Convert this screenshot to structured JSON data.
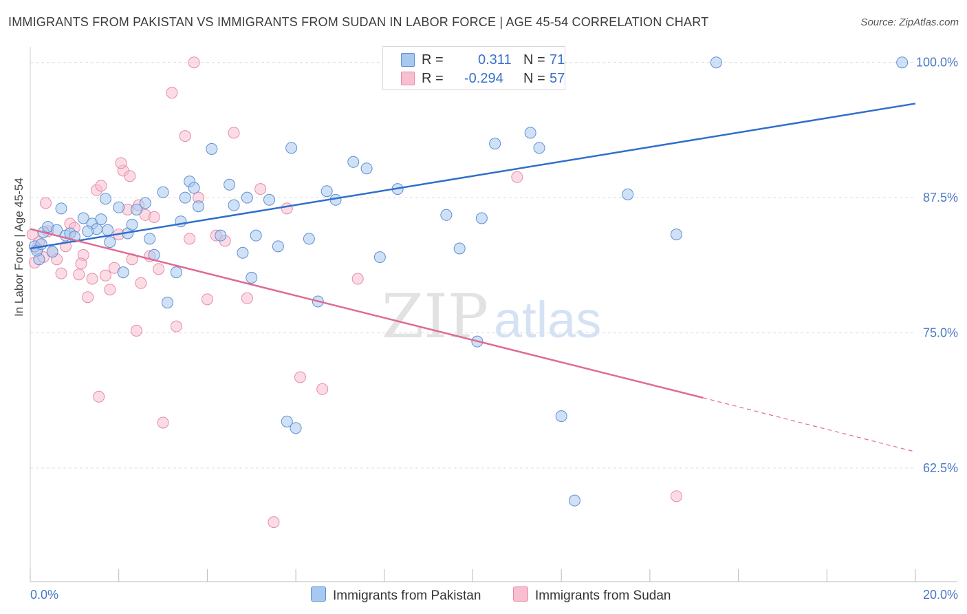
{
  "title": "IMMIGRANTS FROM PAKISTAN VS IMMIGRANTS FROM SUDAN IN LABOR FORCE | AGE 45-54 CORRELATION CHART",
  "source": "Source: ZipAtlas.com",
  "watermark": {
    "zip": "ZIP",
    "atlas": "atlas"
  },
  "legend": {
    "r_label": "R =",
    "n_label": "N =",
    "pakistan": {
      "r": "0.311",
      "n": "71"
    },
    "sudan": {
      "r": "-0.294",
      "n": "57"
    }
  },
  "colors": {
    "pakistan_fill": "#a9c8ef",
    "pakistan_stroke": "#5b8fd6",
    "pakistan_line": "#2f6fcc",
    "sudan_fill": "#f7bfd0",
    "sudan_stroke": "#e88aa6",
    "sudan_line": "#e06a93",
    "tick_label": "#4a78c4",
    "grid": "#dcdcdc"
  },
  "chart_data": {
    "type": "scatter",
    "title": "IMMIGRANTS FROM PAKISTAN VS IMMIGRANTS FROM SUDAN IN LABOR FORCE | AGE 45-54 CORRELATION CHART",
    "xlabel": "",
    "ylabel": "In Labor Force | Age 45-54",
    "xlim": [
      0,
      20
    ],
    "ylim": [
      52,
      101
    ],
    "x_ticks": [
      "0.0%",
      "20.0%"
    ],
    "y_ticks": [
      {
        "value": 100,
        "label": "100.0%"
      },
      {
        "value": 87.5,
        "label": "87.5%"
      },
      {
        "value": 75,
        "label": "75.0%"
      },
      {
        "value": 62.5,
        "label": "62.5%"
      }
    ],
    "grid": true,
    "legend_position": "top-center",
    "series": [
      {
        "name": "Immigrants from Pakistan",
        "trend": {
          "x": [
            0,
            20
          ],
          "y": [
            82.8,
            96.2
          ]
        },
        "points": [
          [
            0.1,
            83.0
          ],
          [
            0.2,
            81.8
          ],
          [
            0.3,
            84.3
          ],
          [
            0.4,
            84.8
          ],
          [
            0.5,
            82.5
          ],
          [
            0.6,
            84.5
          ],
          [
            0.7,
            86.5
          ],
          [
            0.8,
            84.0
          ],
          [
            0.9,
            84.2
          ],
          [
            1.0,
            83.9
          ],
          [
            1.2,
            85.6
          ],
          [
            1.4,
            85.1
          ],
          [
            1.5,
            84.6
          ],
          [
            1.6,
            85.5
          ],
          [
            1.7,
            87.4
          ],
          [
            1.75,
            84.5
          ],
          [
            1.8,
            83.4
          ],
          [
            2.0,
            86.6
          ],
          [
            2.1,
            80.6
          ],
          [
            2.2,
            84.2
          ],
          [
            2.3,
            85.0
          ],
          [
            2.4,
            86.4
          ],
          [
            2.6,
            87.0
          ],
          [
            2.7,
            83.7
          ],
          [
            2.8,
            82.2
          ],
          [
            3.0,
            88.0
          ],
          [
            3.1,
            77.8
          ],
          [
            3.3,
            80.6
          ],
          [
            3.4,
            85.3
          ],
          [
            3.5,
            87.5
          ],
          [
            3.6,
            89.0
          ],
          [
            3.7,
            88.4
          ],
          [
            3.8,
            86.7
          ],
          [
            4.1,
            92.0
          ],
          [
            4.3,
            84.0
          ],
          [
            4.5,
            88.7
          ],
          [
            4.6,
            86.8
          ],
          [
            4.8,
            82.4
          ],
          [
            4.9,
            87.5
          ],
          [
            5.0,
            80.1
          ],
          [
            5.1,
            84.0
          ],
          [
            5.4,
            87.3
          ],
          [
            5.6,
            83.0
          ],
          [
            5.9,
            92.1
          ],
          [
            6.3,
            83.7
          ],
          [
            6.5,
            77.9
          ],
          [
            6.7,
            88.1
          ],
          [
            6.9,
            87.3
          ],
          [
            7.3,
            90.8
          ],
          [
            7.6,
            90.2
          ],
          [
            7.9,
            82.0
          ],
          [
            8.3,
            88.3
          ],
          [
            9.4,
            85.9
          ],
          [
            9.7,
            82.8
          ],
          [
            10.1,
            74.2
          ],
          [
            10.2,
            85.6
          ],
          [
            10.5,
            92.5
          ],
          [
            10.8,
            100.0
          ],
          [
            11.3,
            93.5
          ],
          [
            11.5,
            92.1
          ],
          [
            15.5,
            100.0
          ],
          [
            12.0,
            67.3
          ],
          [
            12.3,
            59.5
          ],
          [
            13.5,
            87.8
          ],
          [
            14.6,
            84.1
          ],
          [
            19.7,
            100.0
          ],
          [
            5.8,
            66.8
          ],
          [
            6.0,
            66.2
          ],
          [
            0.15,
            82.6
          ],
          [
            1.3,
            84.4
          ],
          [
            0.25,
            83.2
          ]
        ]
      },
      {
        "name": "Immigrants from Sudan",
        "trend": {
          "x": [
            0,
            15.2
          ],
          "y": [
            84.6,
            69.0
          ]
        },
        "trend_dashed": {
          "x": [
            15.2,
            20
          ],
          "y": [
            69.0,
            64.0
          ]
        },
        "points": [
          [
            0.05,
            84.1
          ],
          [
            0.1,
            81.5
          ],
          [
            0.2,
            83.4
          ],
          [
            0.3,
            82.0
          ],
          [
            0.4,
            84.4
          ],
          [
            0.5,
            82.5
          ],
          [
            0.6,
            81.8
          ],
          [
            0.7,
            80.5
          ],
          [
            0.8,
            83.0
          ],
          [
            0.9,
            85.1
          ],
          [
            1.0,
            84.7
          ],
          [
            1.1,
            80.4
          ],
          [
            1.2,
            82.2
          ],
          [
            1.3,
            78.3
          ],
          [
            1.4,
            80.0
          ],
          [
            1.5,
            88.2
          ],
          [
            1.55,
            69.1
          ],
          [
            1.6,
            88.6
          ],
          [
            1.7,
            80.3
          ],
          [
            1.8,
            79.0
          ],
          [
            1.9,
            81.0
          ],
          [
            2.0,
            84.1
          ],
          [
            2.1,
            90.0
          ],
          [
            2.2,
            86.4
          ],
          [
            2.3,
            81.8
          ],
          [
            2.4,
            75.2
          ],
          [
            2.5,
            79.6
          ],
          [
            2.6,
            85.9
          ],
          [
            2.7,
            82.1
          ],
          [
            2.8,
            85.7
          ],
          [
            2.9,
            80.9
          ],
          [
            3.0,
            66.7
          ],
          [
            3.2,
            97.2
          ],
          [
            3.3,
            75.6
          ],
          [
            3.5,
            93.2
          ],
          [
            3.6,
            83.7
          ],
          [
            3.8,
            87.5
          ],
          [
            4.0,
            78.1
          ],
          [
            4.2,
            84.0
          ],
          [
            4.4,
            83.5
          ],
          [
            4.6,
            93.5
          ],
          [
            4.9,
            78.2
          ],
          [
            5.2,
            88.3
          ],
          [
            5.5,
            57.5
          ],
          [
            5.8,
            86.5
          ],
          [
            6.1,
            70.9
          ],
          [
            6.6,
            69.8
          ],
          [
            7.4,
            80.0
          ],
          [
            11.0,
            89.4
          ],
          [
            14.6,
            59.9
          ],
          [
            0.15,
            82.8
          ],
          [
            2.05,
            90.7
          ],
          [
            3.7,
            100.0
          ],
          [
            2.25,
            89.5
          ],
          [
            0.35,
            87.0
          ],
          [
            1.15,
            81.4
          ],
          [
            2.45,
            86.8
          ]
        ]
      }
    ]
  },
  "bottom_legend": {
    "pakistan": "Immigrants from Pakistan",
    "sudan": "Immigrants from Sudan"
  }
}
